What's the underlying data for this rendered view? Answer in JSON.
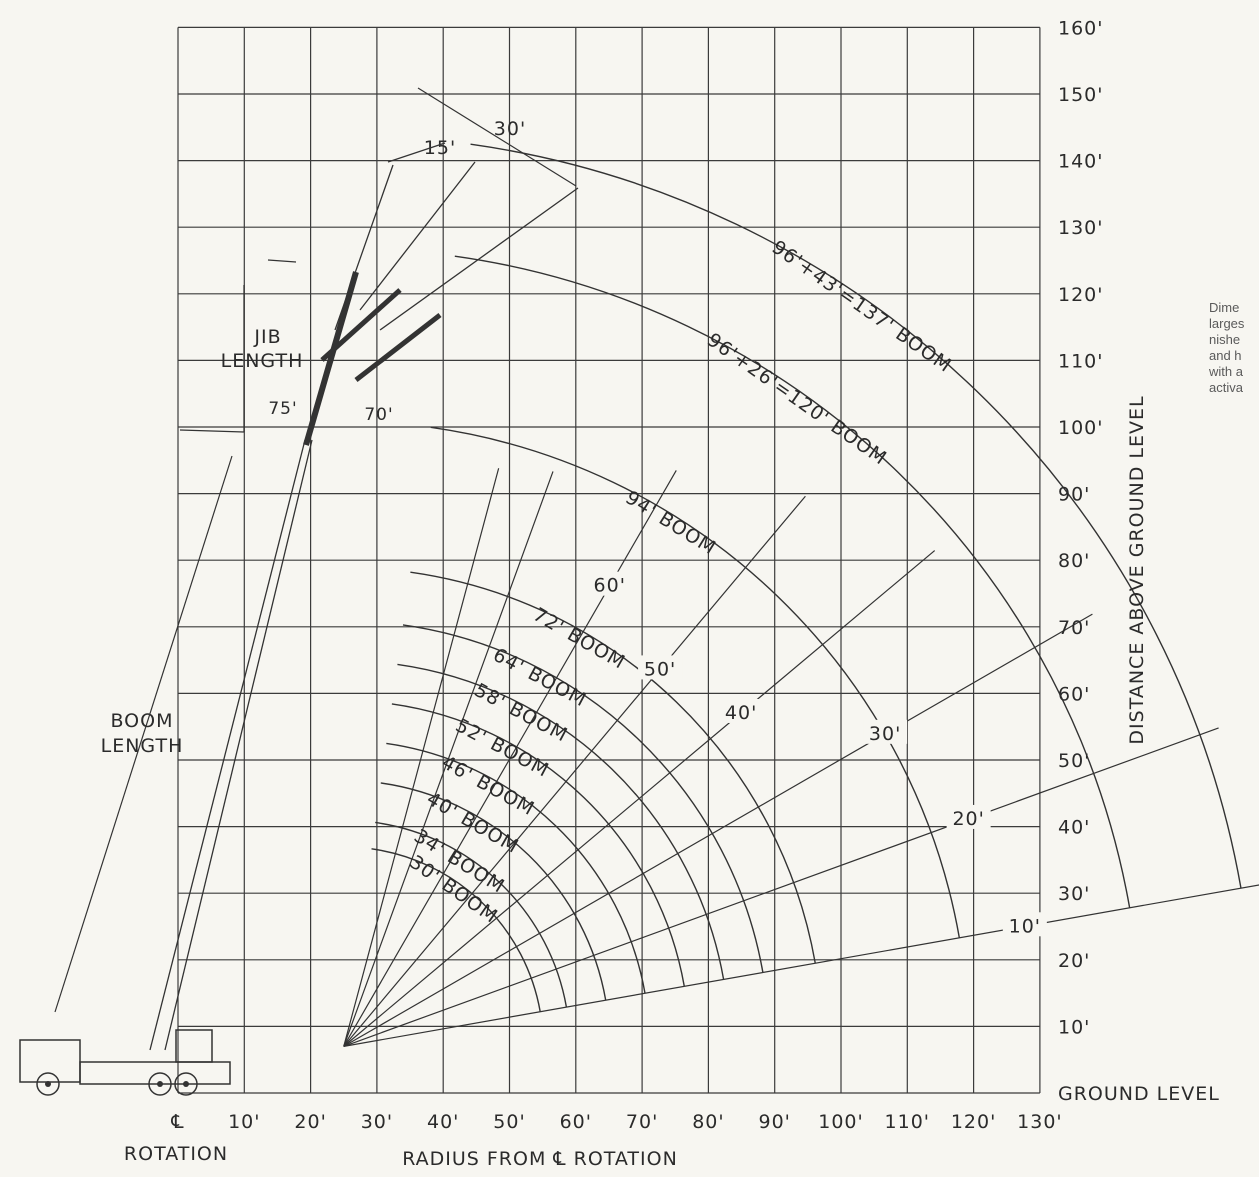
{
  "axes": {
    "y_title": "DISTANCE ABOVE GROUND LEVEL",
    "x_title": "RADIUS FROM ℄ ROTATION",
    "y_ticks": [
      "160'",
      "150'",
      "140'",
      "130'",
      "120'",
      "110'",
      "100'",
      "90'",
      "80'",
      "70'",
      "60'",
      "50'",
      "40'",
      "30'",
      "20'",
      "10'",
      "GROUND LEVEL"
    ],
    "x_ticks": [
      "10'",
      "20'",
      "30'",
      "40'",
      "50'",
      "60'",
      "70'",
      "80'",
      "90'",
      "100'",
      "110'",
      "120'",
      "130'"
    ],
    "rotation_symbol": "℄",
    "rotation_label": "ROTATION"
  },
  "labels": {
    "jib_length": [
      "JIB",
      "LENGTH"
    ],
    "boom_length": [
      "BOOM",
      "LENGTH"
    ],
    "jib_15": "15'",
    "jib_30": "30'",
    "b75": "75'",
    "b70": "70'"
  },
  "booms": [
    {
      "label": "30' BOOM",
      "length": 30
    },
    {
      "label": "34' BOOM",
      "length": 34
    },
    {
      "label": "40' BOOM",
      "length": 40
    },
    {
      "label": "46' BOOM",
      "length": 46
    },
    {
      "label": "52' BOOM",
      "length": 52
    },
    {
      "label": "58' BOOM",
      "length": 58
    },
    {
      "label": "64' BOOM",
      "length": 64
    },
    {
      "label": "72' BOOM",
      "length": 72
    },
    {
      "label": "94' BOOM",
      "length": 94
    },
    {
      "label": "96'+26'=120' BOOM",
      "length": 120
    },
    {
      "label": "96'+43'=137' BOOM",
      "length": 137
    }
  ],
  "angles": [
    {
      "label": "10'",
      "deg": 10
    },
    {
      "label": "20'",
      "deg": 20
    },
    {
      "label": "30'",
      "deg": 30
    },
    {
      "label": "40'",
      "deg": 40
    },
    {
      "label": "50'",
      "deg": 50
    },
    {
      "label": "60'",
      "deg": 60
    },
    {
      "label": "70'",
      "deg": 70
    },
    {
      "label": "75'",
      "deg": 75
    }
  ],
  "side_note": [
    "Dime",
    "larges",
    "nishe",
    "and h",
    "with a",
    "activa"
  ],
  "colors": {
    "paper": "#f7f6f1",
    "ink": "#2b2b2b",
    "grid": "#3b3b3b"
  }
}
